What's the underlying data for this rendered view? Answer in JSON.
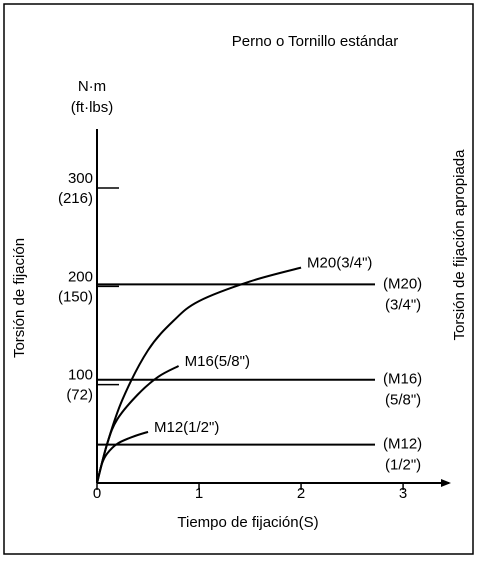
{
  "chart_data": {
    "type": "line",
    "title": "Perno o Tornillo estándar",
    "y_unit": "N·m",
    "y_unit_secondary": "(ft·lbs)",
    "ylabel": "Torsión de fijación",
    "xlabel": "Tiempo de fijación(S)",
    "y2label": "Torsión de fijación apropiada",
    "xlim": [
      0,
      3.45
    ],
    "xticks": [
      0,
      1,
      2,
      3
    ],
    "ylim": [
      0,
      360
    ],
    "yticks": [
      100,
      200,
      300
    ],
    "yticks_secondary": [
      "(72)",
      "(150)",
      "(216)"
    ],
    "color": "#000000",
    "series": [
      {
        "name": "M20(3/4\")",
        "x": [
          0,
          0.1,
          0.25,
          0.5,
          0.75,
          1.0,
          1.5,
          2.0
        ],
        "values": [
          0,
          40,
          85,
          135,
          165,
          185,
          205,
          219
        ]
      },
      {
        "name": "M16(5/8\")",
        "x": [
          0,
          0.1,
          0.2,
          0.4,
          0.6,
          0.8
        ],
        "values": [
          0,
          40,
          65,
          90,
          108,
          119
        ]
      },
      {
        "name": "M12(1/2\")",
        "x": [
          0,
          0.05,
          0.1,
          0.2,
          0.35,
          0.5
        ],
        "values": [
          0,
          20,
          30,
          40,
          47,
          52
        ]
      }
    ],
    "reference_lines": [
      {
        "name": "(M20)",
        "size": "(3/4\")",
        "value": 202
      },
      {
        "name": "(M16)",
        "size": "(5/8\")",
        "value": 105
      },
      {
        "name": "(M12)",
        "size": "(1/2\")",
        "value": 39
      }
    ]
  }
}
